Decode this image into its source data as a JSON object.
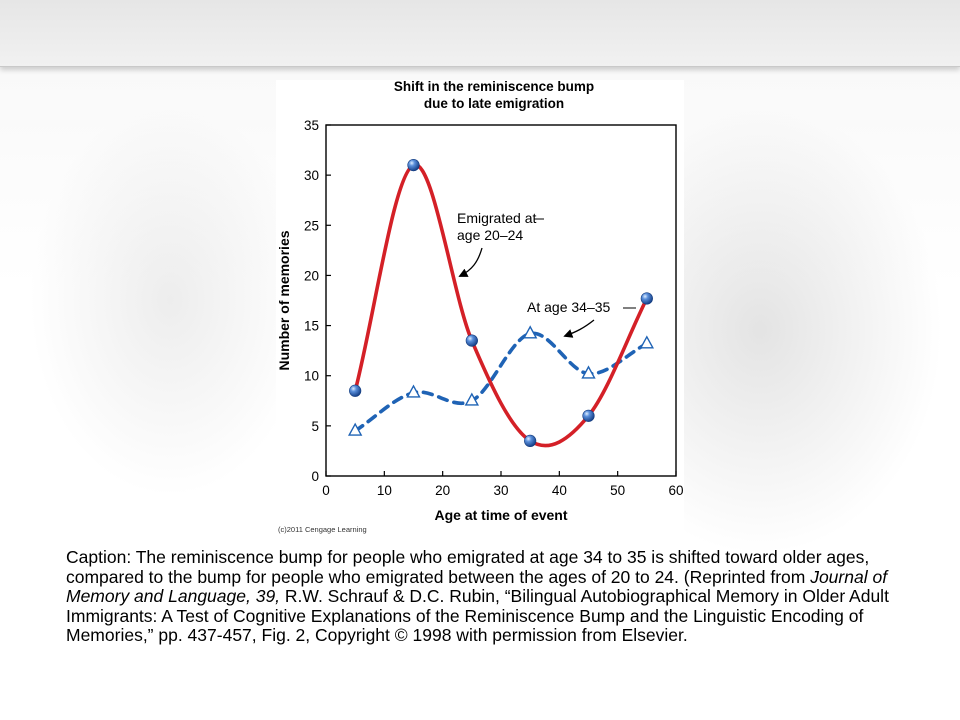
{
  "chart_data": {
    "type": "line",
    "title": "Shift in the reminiscence bump due to late emigration",
    "title_lines": [
      "Shift in the reminiscence bump",
      "due to late emigration"
    ],
    "xlabel": "Age at time of event",
    "ylabel": "Number of memories",
    "xlim": [
      0,
      60
    ],
    "ylim": [
      0,
      35
    ],
    "xticks": [
      0,
      10,
      20,
      30,
      40,
      50,
      60
    ],
    "yticks": [
      0,
      5,
      10,
      15,
      20,
      25,
      30,
      35
    ],
    "grid": false,
    "series": [
      {
        "name": "Emigrated at age 20–24",
        "label_lines": [
          "Emigrated at",
          "age 20–24"
        ],
        "color": "#d42027",
        "line_style": "solid",
        "marker": "blue-sphere",
        "points": [
          {
            "x": 5,
            "y": 8.5
          },
          {
            "x": 15,
            "y": 31
          },
          {
            "x": 25,
            "y": 13.5
          },
          {
            "x": 35,
            "y": 3.5
          },
          {
            "x": 45,
            "y": 6
          },
          {
            "x": 55,
            "y": 17.7
          }
        ]
      },
      {
        "name": "At age 34–35",
        "label_lines": [
          "At age 34–35"
        ],
        "color": "#1f63b5",
        "line_style": "dashed",
        "marker": "open-triangle",
        "points": [
          {
            "x": 5,
            "y": 4.5
          },
          {
            "x": 15,
            "y": 8.3
          },
          {
            "x": 25,
            "y": 7.5
          },
          {
            "x": 35,
            "y": 14.2
          },
          {
            "x": 45,
            "y": 10.2
          },
          {
            "x": 55,
            "y": 13.2
          }
        ]
      }
    ],
    "credit": "(c)2011 Cengage Learning"
  },
  "caption": {
    "prefix": "Caption: The reminiscence bump for people who emigrated at age 34 to 35 is shifted toward older ages, compared to the bump for people who emigrated between the ages of 20 to 24. (Reprinted from ",
    "journal": "Journal of Memory and Language, 39,",
    "suffix": " R.W. Schrauf & D.C. Rubin, “Bilingual Autobiographical Memory in Older Adult Immigrants: A Test of Cognitive Explanations of the Reminiscence Bump and the Linguistic Encoding of Memories,” pp. 437-457, Fig. 2, Copyright © 1998 with permission from Elsevier."
  },
  "colors": {
    "axis": "#000000",
    "marker_blue": "#2a5fb3"
  }
}
